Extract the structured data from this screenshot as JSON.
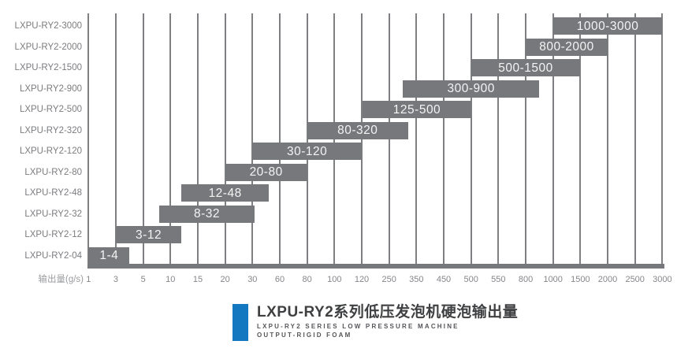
{
  "chart_data": {
    "type": "bar",
    "orientation": "horizontal-range",
    "title": "LXPU-RY2系列低压发泡机硬泡输出量",
    "subtitle_lines": [
      "LXPU-RY2 SERIES LOW PRESSURE MACHINE",
      "OUTPUT-RIGID FOAM"
    ],
    "xlabel": "输出量(g/s)",
    "x_scale": "categorical-interpolated",
    "x_ticks": [
      1,
      3,
      5,
      10,
      15,
      20,
      30,
      60,
      80,
      100,
      120,
      250,
      350,
      450,
      500,
      550,
      800,
      1000,
      1500,
      2000,
      2500,
      3000
    ],
    "grid": true,
    "legend": false,
    "rows": [
      {
        "model": "LXPU-RY2-3000",
        "range_start": 1000,
        "range_end": 3000,
        "label": "1000-3000"
      },
      {
        "model": "LXPU-RY2-2000",
        "range_start": 800,
        "range_end": 2000,
        "label": "800-2000"
      },
      {
        "model": "LXPU-RY2-1500",
        "range_start": 500,
        "range_end": 1500,
        "label": "500-1500"
      },
      {
        "model": "LXPU-RY2-900",
        "range_start": 300,
        "range_end": 900,
        "label": "300-900"
      },
      {
        "model": "LXPU-RY2-500",
        "range_start": 125,
        "range_end": 500,
        "label": "125-500"
      },
      {
        "model": "LXPU-RY2-320",
        "range_start": 80,
        "range_end": 320,
        "label": "80-320"
      },
      {
        "model": "LXPU-RY2-120",
        "range_start": 30,
        "range_end": 120,
        "label": "30-120"
      },
      {
        "model": "LXPU-RY2-80",
        "range_start": 20,
        "range_end": 80,
        "label": "20-80"
      },
      {
        "model": "LXPU-RY2-48",
        "range_start": 12,
        "range_end": 48,
        "label": "12-48"
      },
      {
        "model": "LXPU-RY2-32",
        "range_start": 8,
        "range_end": 32,
        "label": "8-32"
      },
      {
        "model": "LXPU-RY2-12",
        "range_start": 3,
        "range_end": 12,
        "label": "3-12"
      },
      {
        "model": "LXPU-RY2-04",
        "range_start": 1,
        "range_end": 4,
        "label": "1-4"
      }
    ]
  },
  "colors": {
    "background": "#ffffff",
    "bar": "#77787b",
    "bar_label": "#f4f4f4",
    "gridline": "#7e7f83",
    "axis_line": "#77787b",
    "y_label": "#7b7c7f",
    "x_label": "#85868a",
    "axis_title": "#9a9b9e",
    "title": "#3f4042",
    "subtitle": "#55565a",
    "accent_blue": "#1478c0"
  }
}
